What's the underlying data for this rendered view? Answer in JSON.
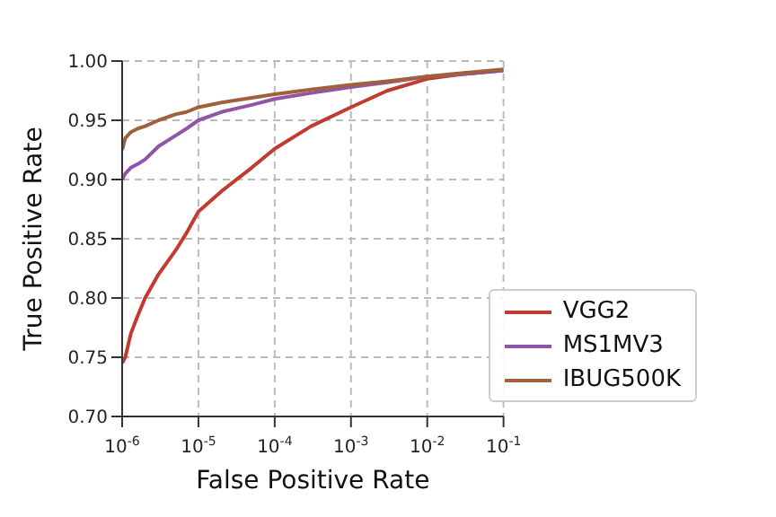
{
  "chart_data": {
    "type": "line",
    "xlabel": "False Positive Rate",
    "ylabel": "True Positive Rate",
    "log": "x",
    "grid": true,
    "legend": "bottom right",
    "line_style": "solid",
    "marker": "none",
    "xlim": [
      1e-06,
      0.1
    ],
    "xticks": [
      {
        "value": 1e-06,
        "label": "10$^{-6}$"
      },
      {
        "value": 1e-05,
        "label": "10$^{-5}$"
      },
      {
        "value": 0.0001,
        "label": "10$^{-4}$"
      },
      {
        "value": 0.001,
        "label": "10$^{-3}$"
      },
      {
        "value": 0.01,
        "label": "10$^{-2}$"
      },
      {
        "value": 0.1,
        "label": "10$^{-1}$"
      }
    ],
    "ylim": [
      0.7,
      1.0
    ],
    "yticks": [
      {
        "value": 0.7,
        "label": "0.70"
      },
      {
        "value": 0.75,
        "label": "0.75"
      },
      {
        "value": 0.8,
        "label": "0.80"
      },
      {
        "value": 0.85,
        "label": "0.85"
      },
      {
        "value": 0.9,
        "label": "0.90"
      },
      {
        "value": 0.95,
        "label": "0.95"
      },
      {
        "value": 1.0,
        "label": "1.00"
      }
    ],
    "x": [
      1e-06,
      1.1e-06,
      1.3e-06,
      1.6e-06,
      2e-06,
      3e-06,
      5e-06,
      7e-06,
      1e-05,
      2e-05,
      5e-05,
      0.0001,
      0.0003,
      0.001,
      0.003,
      0.01,
      0.03,
      0.1
    ],
    "series": [
      {
        "name": "VGG2",
        "color": "#c23b2f",
        "values": [
          0.745,
          0.75,
          0.77,
          0.785,
          0.8,
          0.82,
          0.84,
          0.855,
          0.873,
          0.89,
          0.91,
          0.926,
          0.945,
          0.961,
          0.975,
          0.985,
          0.989,
          0.992
        ]
      },
      {
        "name": "MS1MV3",
        "color": "#8e55a8",
        "values": [
          0.9,
          0.905,
          0.91,
          0.913,
          0.917,
          0.928,
          0.937,
          0.943,
          0.95,
          0.957,
          0.963,
          0.968,
          0.973,
          0.978,
          0.982,
          0.987,
          0.989,
          0.992
        ]
      },
      {
        "name": "IBUG500K",
        "color": "#a0603a",
        "values": [
          0.925,
          0.935,
          0.94,
          0.943,
          0.945,
          0.95,
          0.955,
          0.957,
          0.961,
          0.965,
          0.969,
          0.972,
          0.976,
          0.98,
          0.983,
          0.987,
          0.99,
          0.993
        ]
      }
    ]
  }
}
